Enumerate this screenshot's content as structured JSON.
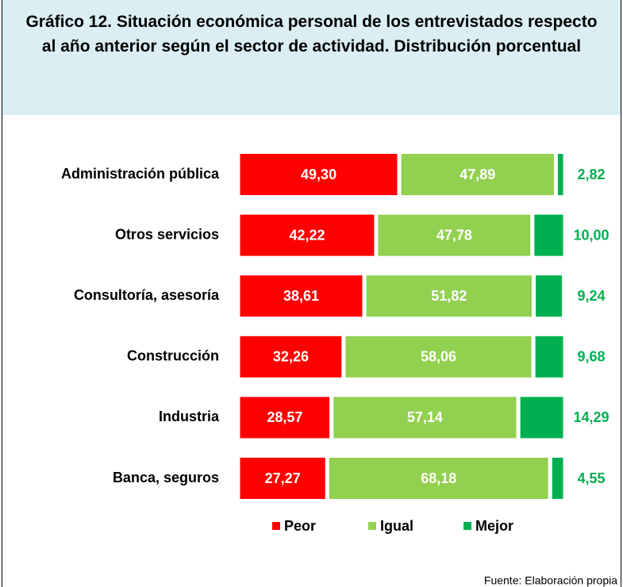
{
  "chart_data": {
    "type": "stacked-barh",
    "title": "Gráfico 12. Situación económica personal de los entrevistados respecto al año anterior según el sector de actividad. Distribución porcentual",
    "categories": [
      "Administración pública",
      "Otros servicios",
      "Consultoría, asesoría",
      "Construcción",
      "Industria",
      "Banca, seguros"
    ],
    "series": [
      {
        "name": "Peor",
        "color": "#ff0000",
        "values": [
          49.3,
          42.22,
          38.61,
          32.26,
          28.57,
          27.27
        ],
        "value_labels": [
          "49,30",
          "42,22",
          "38,61",
          "32,26",
          "28,57",
          "27,27"
        ]
      },
      {
        "name": "Igual",
        "color": "#92d050",
        "values": [
          47.89,
          47.78,
          51.82,
          58.06,
          57.14,
          68.18
        ],
        "value_labels": [
          "47,89",
          "47,78",
          "51,82",
          "58,06",
          "57,14",
          "68,18"
        ]
      },
      {
        "name": "Mejor",
        "color": "#00b050",
        "values": [
          2.82,
          10.0,
          9.24,
          9.68,
          14.29,
          4.55
        ],
        "value_labels": [
          "2,82",
          "10,00",
          "9,24",
          "9,68",
          "14,29",
          "4,55"
        ]
      }
    ],
    "xlim": [
      0,
      100
    ],
    "source": "Fuente: Elaboración propia"
  }
}
